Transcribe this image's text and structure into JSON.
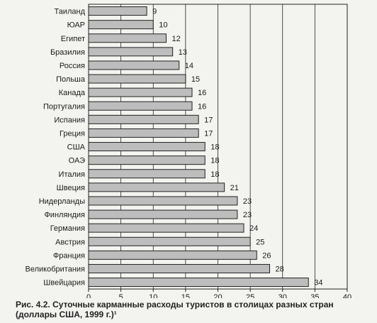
{
  "chart_data": {
    "type": "bar",
    "orientation": "horizontal",
    "categories": [
      "Таиланд",
      "ЮАР",
      "Египет",
      "Бразилия",
      "Россия",
      "Польша",
      "Канада",
      "Португалия",
      "Испания",
      "Греция",
      "США",
      "ОАЭ",
      "Италия",
      "Швеция",
      "Нидерланды",
      "Финляндия",
      "Германия",
      "Австрия",
      "Франция",
      "Великобритания",
      "Швейцария"
    ],
    "values": [
      9,
      10,
      12,
      13,
      14,
      15,
      16,
      16,
      17,
      17,
      18,
      18,
      18,
      21,
      23,
      23,
      24,
      25,
      26,
      28,
      34
    ],
    "value_labels": [
      "9",
      "10",
      "12",
      "13",
      "14",
      "15",
      "16",
      "16",
      "17",
      "17",
      "18",
      "18",
      "18",
      "21",
      "23",
      "23",
      "24",
      "25",
      "26",
      "28",
      "34"
    ],
    "xlim": [
      0,
      40
    ],
    "xticks": [
      "0",
      "5",
      "10",
      "15",
      "20",
      "25",
      "30",
      "35",
      "40"
    ],
    "grid": true,
    "bar_color": "#bdbdbd",
    "axis_color": "#222222"
  },
  "caption": {
    "figure_label": "Рис. 4.2.",
    "text": " Суточные карманные расходы туристов в столицах разных стран (доллары США, 1999 г.)¹"
  }
}
